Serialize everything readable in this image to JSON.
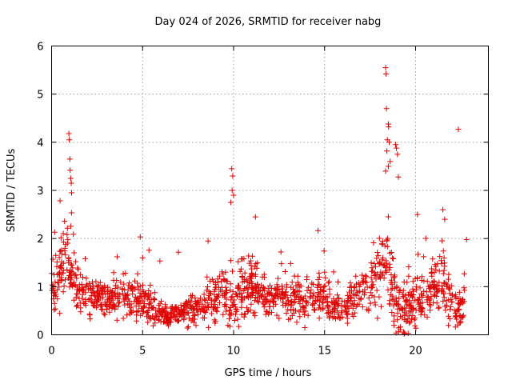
{
  "chart_data": {
    "type": "scatter",
    "title": "Day 024 of 2026, SRMTID for receiver nabg",
    "xlabel": "GPS time / hours",
    "ylabel": "SRMTID / TECUs",
    "xlim": [
      0,
      24
    ],
    "ylim": [
      0,
      6
    ],
    "xticks": [
      0,
      5,
      10,
      15,
      20
    ],
    "yticks": [
      0,
      1,
      2,
      3,
      4,
      5,
      6
    ],
    "grid": true,
    "marker": "+",
    "marker_color": "#e00000",
    "series": [
      {
        "name": "SRMTID",
        "description_of_envelope_hours_to_typical_range": "",
        "profile": [
          [
            0.0,
            1.0,
            0.45
          ],
          [
            0.3,
            1.2,
            0.4
          ],
          [
            0.6,
            1.4,
            0.5
          ],
          [
            0.9,
            1.6,
            0.6
          ],
          [
            1.2,
            1.2,
            0.5
          ],
          [
            1.6,
            0.9,
            0.35
          ],
          [
            2.0,
            0.8,
            0.3
          ],
          [
            2.5,
            0.85,
            0.3
          ],
          [
            3.0,
            0.75,
            0.3
          ],
          [
            3.5,
            0.8,
            0.3
          ],
          [
            4.0,
            0.75,
            0.3
          ],
          [
            4.5,
            0.8,
            0.35
          ],
          [
            5.0,
            0.7,
            0.3
          ],
          [
            5.5,
            0.5,
            0.2
          ],
          [
            6.0,
            0.45,
            0.15
          ],
          [
            6.5,
            0.4,
            0.15
          ],
          [
            7.0,
            0.45,
            0.15
          ],
          [
            7.5,
            0.5,
            0.2
          ],
          [
            8.0,
            0.55,
            0.2
          ],
          [
            8.5,
            0.7,
            0.3
          ],
          [
            9.0,
            0.8,
            0.35
          ],
          [
            9.5,
            0.9,
            0.4
          ],
          [
            10.0,
            0.6,
            0.35
          ],
          [
            10.5,
            1.0,
            0.45
          ],
          [
            11.0,
            1.0,
            0.45
          ],
          [
            11.5,
            0.8,
            0.3
          ],
          [
            12.0,
            0.75,
            0.3
          ],
          [
            12.5,
            0.8,
            0.3
          ],
          [
            13.0,
            0.7,
            0.3
          ],
          [
            13.5,
            0.7,
            0.3
          ],
          [
            14.0,
            0.7,
            0.3
          ],
          [
            14.5,
            0.8,
            0.3
          ],
          [
            15.0,
            0.8,
            0.35
          ],
          [
            15.5,
            0.6,
            0.25
          ],
          [
            16.0,
            0.5,
            0.2
          ],
          [
            16.5,
            0.7,
            0.3
          ],
          [
            17.0,
            0.9,
            0.35
          ],
          [
            17.5,
            1.0,
            0.4
          ],
          [
            18.0,
            1.3,
            0.55
          ],
          [
            18.5,
            1.5,
            0.7
          ],
          [
            19.0,
            0.5,
            0.45
          ],
          [
            19.5,
            0.6,
            0.45
          ],
          [
            20.0,
            0.8,
            0.45
          ],
          [
            20.5,
            0.8,
            0.4
          ],
          [
            21.0,
            0.9,
            0.45
          ],
          [
            21.5,
            1.2,
            0.6
          ],
          [
            22.0,
            0.5,
            0.35
          ],
          [
            22.4,
            0.5,
            0.3
          ],
          [
            22.7,
            0.8,
            0.35
          ]
        ],
        "highlights": [
          [
            0.95,
            4.18
          ],
          [
            0.97,
            4.05
          ],
          [
            1.0,
            3.65
          ],
          [
            1.02,
            3.42
          ],
          [
            1.05,
            3.25
          ],
          [
            1.08,
            3.15
          ],
          [
            1.1,
            2.95
          ],
          [
            9.9,
            3.45
          ],
          [
            9.95,
            3.3
          ],
          [
            9.92,
            3.0
          ],
          [
            10.0,
            2.9
          ],
          [
            9.85,
            2.75
          ],
          [
            18.35,
            5.55
          ],
          [
            18.38,
            5.42
          ],
          [
            18.4,
            4.7
          ],
          [
            18.5,
            4.38
          ],
          [
            18.52,
            4.32
          ],
          [
            18.45,
            4.05
          ],
          [
            18.55,
            4.0
          ],
          [
            18.42,
            3.82
          ],
          [
            18.6,
            3.6
          ],
          [
            18.5,
            3.5
          ],
          [
            18.35,
            3.4
          ],
          [
            18.9,
            3.95
          ],
          [
            18.95,
            3.88
          ],
          [
            19.0,
            3.75
          ],
          [
            19.05,
            3.28
          ],
          [
            22.35,
            4.27
          ],
          [
            21.5,
            2.6
          ],
          [
            21.6,
            2.4
          ],
          [
            20.1,
            2.5
          ],
          [
            11.2,
            2.45
          ],
          [
            8.6,
            1.95
          ],
          [
            12.6,
            1.72
          ],
          [
            22.8,
            1.98
          ],
          [
            3.6,
            1.62
          ],
          [
            5.0,
            1.6
          ]
        ],
        "point_count": 1500
      }
    ]
  }
}
